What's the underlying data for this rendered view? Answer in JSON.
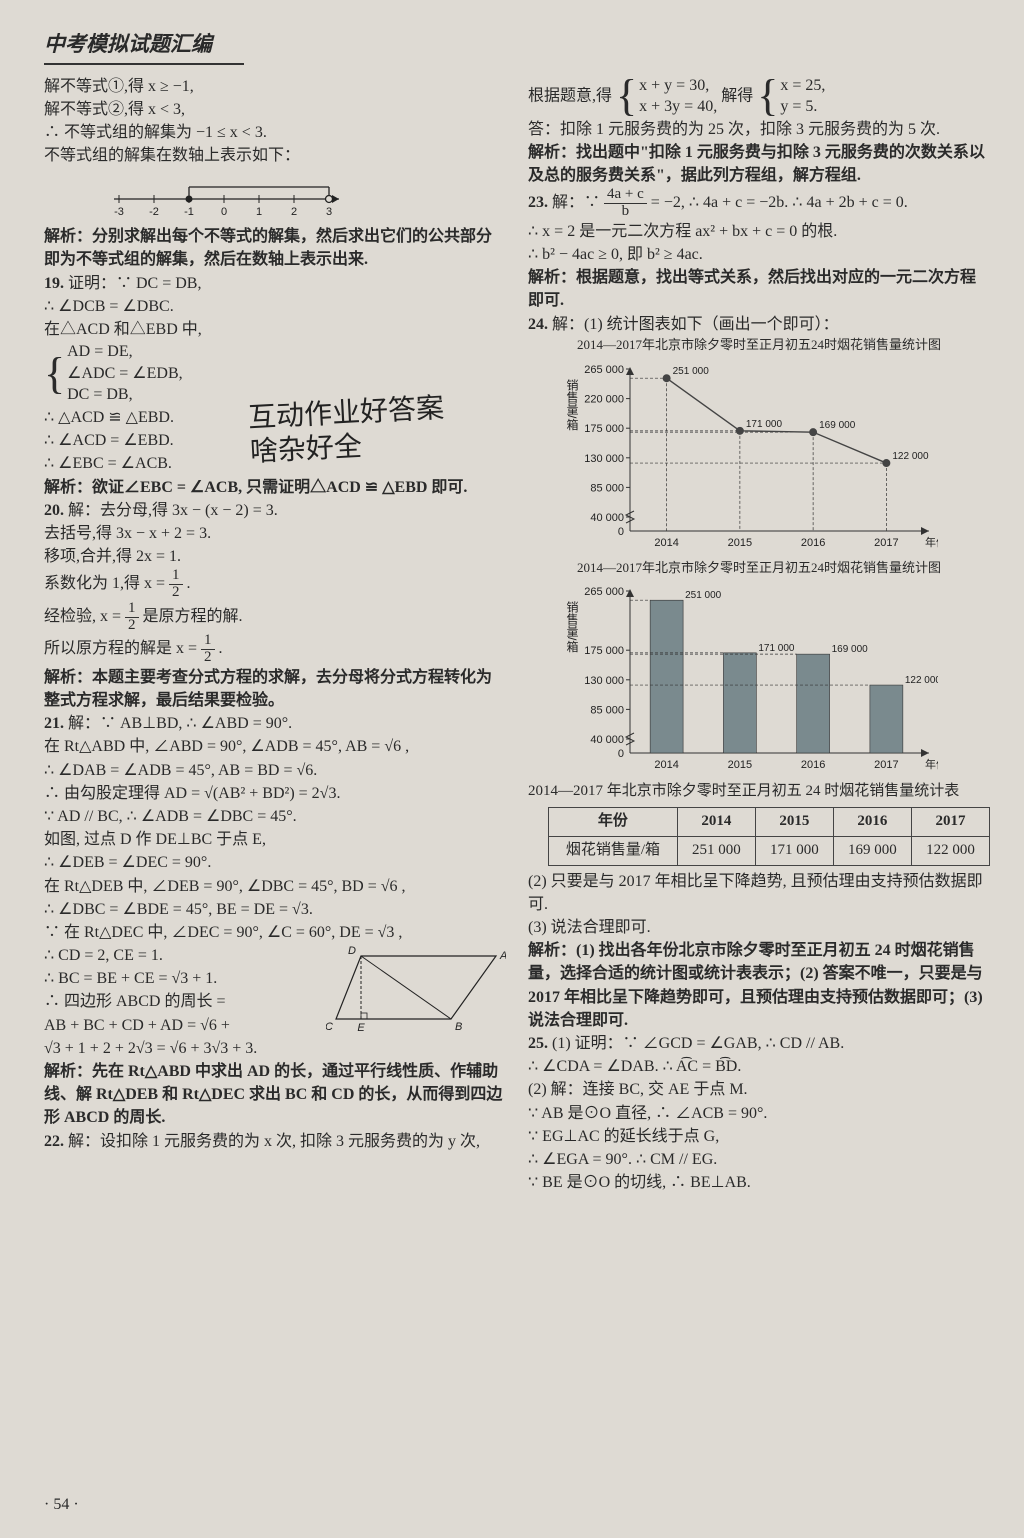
{
  "page": {
    "header": "中考模拟试题汇编",
    "footer": "· 54 ·"
  },
  "handwriting": {
    "l1": "互动作业好答案",
    "l2": "啥杂好全"
  },
  "colL": {
    "t01": "解不等式①,得 x ≥ −1,",
    "t02": "解不等式②,得 x < 3,",
    "t03": "∴ 不等式组的解集为 −1 ≤ x < 3.",
    "t04": "不等式组的解集在数轴上表示如下：",
    "t05": "解析：分别求解出每个不等式的解集，然后求出它们的公共部分即为不等式组的解集，然后在数轴上表示出来.",
    "q19": "19.",
    "t06": "证明：∵ DC = DB,",
    "t07": "∴ ∠DCB = ∠DBC.",
    "t08": "在△ACD 和△EBD 中,",
    "t09a": "AD = DE,",
    "t09b": "∠ADC = ∠EDB,",
    "t09c": "DC = DB,",
    "t10": "∴ △ACD ≌ △EBD.",
    "t11": "∴ ∠ACD = ∠EBD.",
    "t12": "∴ ∠EBC = ∠ACB.",
    "t13": "解析：欲证∠EBC = ∠ACB, 只需证明△ACD ≌ △EBD 即可.",
    "q20": "20.",
    "t14": "解：去分母,得 3x − (x − 2) = 3.",
    "t15": "去括号,得 3x − x + 2 = 3.",
    "t16": "移项,合并,得 2x = 1.",
    "t17a": "系数化为 1,得 x = ",
    "t17b": ".",
    "t18a": "经检验, x = ",
    "t18b": " 是原方程的解.",
    "t19a": "所以原方程的解是 x = ",
    "t19b": ".",
    "t20": "解析：本题主要考查分式方程的求解，去分母将分式方程转化为整式方程求解，最后结果要检验。",
    "q21": "21.",
    "t21": "解：∵ AB⊥BD, ∴ ∠ABD = 90°.",
    "t22": "在 Rt△ABD 中, ∠ABD = 90°, ∠ADB = 45°, AB = √6 ,",
    "t23": "∴ ∠DAB = ∠ADB = 45°, AB = BD = √6.",
    "t24": "∴ 由勾股定理得 AD = √(AB² + BD²) = 2√3.",
    "t25": "∵ AD // BC, ∴ ∠ADB = ∠DBC = 45°.",
    "t26": "如图, 过点 D 作 DE⊥BC 于点 E,",
    "t27": "∴ ∠DEB = ∠DEC = 90°.",
    "t28": "在 Rt△DEB 中, ∠DEB = 90°, ∠DBC = 45°, BD = √6 ,",
    "t29": "∴ ∠DBC = ∠BDE = 45°, BE = DE = √3.",
    "t30": "∵ 在 Rt△DEC 中, ∠DEC = 90°, ∠C = 60°, DE = √3 ,",
    "t31": "∴ CD = 2, CE = 1.",
    "t32": "∴ BC = BE + CE = √3 + 1.",
    "t33": "∴ 四边形 ABCD 的周长 =",
    "t34": "AB + BC + CD + AD = √6 +",
    "t35": "√3 + 1 + 2 + 2√3 = √6 + 3√3 + 3.",
    "t36": "解析：先在 Rt△ABD 中求出 AD 的长，通过平行线性质、作辅助线、解 Rt△DEB 和 Rt△DEC 求出 BC 和 CD 的长，从而得到四边形 ABCD 的周长.",
    "q22": "22.",
    "t37": "解：设扣除 1 元服务费的为 x 次, 扣除 3 元服务费的为 y 次,"
  },
  "numberline": {
    "ticks": [
      "-3",
      "-2",
      "-1",
      "0",
      "1",
      "2",
      "3"
    ],
    "closed_at": "-1",
    "open_at": "3",
    "axis_color": "#222"
  },
  "trapezoid": {
    "labels": {
      "D": "D",
      "A": "A",
      "C": "C",
      "E": "E",
      "B": "B"
    },
    "stroke": "#222"
  },
  "colR": {
    "t01a": "根据题意,得 ",
    "sys1a": "x + y = 30,",
    "sys1b": "x + 3y = 40,",
    "t01b": " 解得 ",
    "sys2a": "x = 25,",
    "sys2b": "y = 5.",
    "t02": "答：扣除 1 元服务费的为 25 次，扣除 3 元服务费的为 5 次.",
    "t03": "解析：找出题中\"扣除 1 元服务费与扣除 3 元服务费的次数关系以及总的服务费关系\"，据此列方程组，解方程组.",
    "q23": "23.",
    "t04a": "解：∵ ",
    "t04b": " = −2, ∴ 4a + c = −2b. ∴ 4a + 2b + c = 0.",
    "t05": "∴ x = 2 是一元二次方程 ax² + bx + c = 0 的根.",
    "t06": "∴ b² − 4ac ≥ 0, 即 b² ≥ 4ac.",
    "t07": "解析：根据题意，找出等式关系，然后找出对应的一元二次方程即可.",
    "q24": "24.",
    "t08": "解：(1) 统计图表如下（画出一个即可）：",
    "chart1_title": "2014—2017年北京市除夕零时至正月初五24时烟花销售量统计图",
    "chart2_title": "2014—2017年北京市除夕零时至正月初五24时烟花销售量统计图",
    "table_title": "2014—2017 年北京市除夕零时至正月初五 24 时烟花销售量统计表",
    "t09": "(2) 只要是与 2017 年相比呈下降趋势, 且预估理由支持预估数据即可.",
    "t10": "(3) 说法合理即可.",
    "t11": "解析：(1) 找出各年份北京市除夕零时至正月初五 24 时烟花销售量，选择合适的统计图或统计表表示；(2) 答案不唯一，只要是与 2017 年相比呈下降趋势即可，且预估理由支持预估数据即可；(3) 说法合理即可.",
    "q25": "25.",
    "t12": "(1) 证明：∵ ∠GCD = ∠GAB, ∴ CD // AB.",
    "t13": "∴ ∠CDA = ∠DAB. ∴ A͡C = B͡D.",
    "t14": "(2) 解：连接 BC, 交 AE 于点 M.",
    "t15": "∵ AB 是⊙O 直径, ∴ ∠ACB = 90°.",
    "t16": "∵ EG⊥AC 的延长线于点 G,",
    "t17": "∴ ∠EGA = 90°. ∴ CM // EG.",
    "t18": "∵ BE 是⊙O 的切线, ∴ BE⊥AB."
  },
  "chart_line": {
    "type": "line",
    "y_label": "销售量/箱",
    "x_label": "年份",
    "categories": [
      "2014",
      "2015",
      "2016",
      "2017"
    ],
    "values": [
      251000,
      171000,
      169000,
      122000
    ],
    "value_labels": [
      "251 000",
      "171 000",
      "169 000",
      "122 000"
    ],
    "yticks": [
      0,
      40000,
      85000,
      130000,
      175000,
      220000,
      265000
    ],
    "ytick_labels": [
      "0",
      "40 000",
      "85 000",
      "130 000",
      "175 000",
      "220 000",
      "265 000"
    ],
    "line_color": "#444",
    "marker": "circle",
    "marker_size": 4,
    "grid_dash": "3,2",
    "axis_color": "#333",
    "bg": "#dedad3",
    "break_mark": true
  },
  "chart_bar": {
    "type": "bar",
    "y_label": "销售量/箱",
    "x_label": "年份",
    "categories": [
      "2014",
      "2015",
      "2016",
      "2017"
    ],
    "values": [
      251000,
      171000,
      169000,
      122000
    ],
    "value_labels": [
      "251 000",
      "171 000",
      "169 000",
      "122 000"
    ],
    "yticks": [
      0,
      40000,
      85000,
      130000,
      175000,
      265000
    ],
    "ytick_labels": [
      "0",
      "40 000",
      "85 000",
      "130 000",
      "175 000",
      "265 000"
    ],
    "bar_color": "#7a8a8e",
    "bar_width": 0.45,
    "axis_color": "#333",
    "bg": "#dedad3",
    "break_mark": true
  },
  "table": {
    "columns": [
      "年份",
      "2014",
      "2015",
      "2016",
      "2017"
    ],
    "rows": [
      [
        "烟花销售量/箱",
        "251 000",
        "171 000",
        "169 000",
        "122 000"
      ]
    ],
    "border_color": "#444"
  }
}
